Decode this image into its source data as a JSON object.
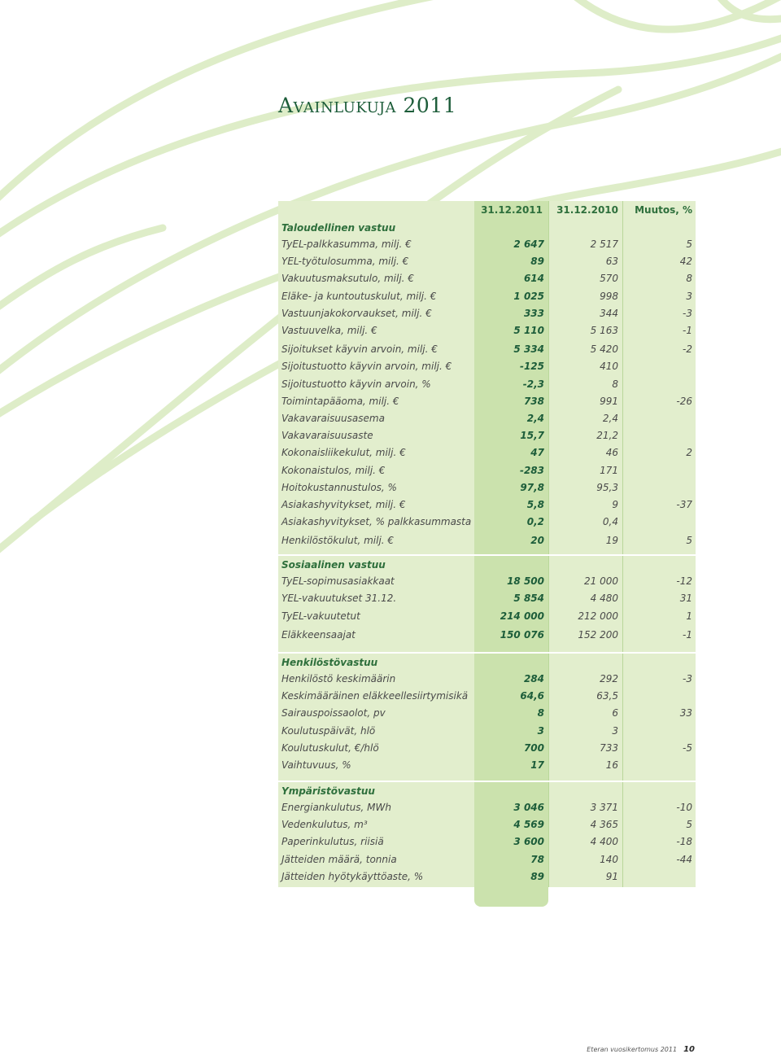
{
  "title": "Avainlukuja 2011",
  "columns": [
    "31.12.2011",
    "31.12.2010",
    "Muutos, %"
  ],
  "sections": [
    {
      "title": "Taloudellinen vastuu",
      "rows": [
        [
          "TyEL-palkkasumma, milj. €",
          "2 647",
          "2 517",
          "5"
        ],
        [
          "YEL-työtulosumma, milj. €",
          "89",
          "63",
          "42"
        ],
        [
          "Vakuutusmaksutulo, milj. €",
          "614",
          "570",
          "8"
        ],
        [
          "Eläke- ja kuntoutuskulut, milj. €",
          "1 025",
          "998",
          "3"
        ],
        [
          "Vastuunjakokorvaukset, milj. €",
          "333",
          "344",
          "-3"
        ],
        [
          "Vastuuvelka, milj. €",
          "5 110",
          "5 163",
          "-1"
        ],
        [
          "Sijoitukset käyvin arvoin, milj. €",
          "5 334",
          "5 420",
          "-2"
        ],
        [
          "Sijoitustuotto käyvin arvoin, milj. €",
          "-125",
          "410",
          ""
        ],
        [
          "Sijoitustuotto käyvin arvoin, %",
          "-2,3",
          "8",
          ""
        ],
        [
          "Toimintapääoma, milj. €",
          "738",
          "991",
          "-26"
        ],
        [
          "Vakavaraisuusasema",
          "2,4",
          "2,4",
          ""
        ],
        [
          "Vakavaraisuusaste",
          "15,7",
          "21,2",
          ""
        ],
        [
          "Kokonaisliikekulut, milj. €",
          "47",
          "46",
          "2"
        ],
        [
          "Kokonaistulos, milj. €",
          "-283",
          "171",
          ""
        ],
        [
          "Hoitokustannustulos, %",
          "97,8",
          "95,3",
          ""
        ],
        [
          "Asiakashyvitykset, milj. €",
          "5,8",
          "9",
          "-37"
        ],
        [
          "Asiakashyvitykset, % palkkasummasta",
          "0,2",
          "0,4",
          ""
        ],
        [
          "Henkilöstökulut, milj. €",
          "20",
          "19",
          "5"
        ]
      ]
    },
    {
      "title": "Sosiaalinen vastuu",
      "rows": [
        [
          "TyEL-sopimusasiakkaat",
          "18 500",
          "21 000",
          "-12"
        ],
        [
          "YEL-vakuutukset 31.12.",
          "5 854",
          "4 480",
          "31"
        ],
        [
          "TyEL-vakuutetut",
          "214 000",
          "212 000",
          "1"
        ],
        [
          "Eläkkeensaajat",
          "150 076",
          "152 200",
          "-1"
        ]
      ]
    },
    {
      "title": "Henkilöstövastuu",
      "rows": [
        [
          "Henkilöstö keskimäärin",
          "284",
          "292",
          "-3"
        ],
        [
          "Keskimääräinen eläkkeellesiirtymisikä",
          "64,6",
          "63,5",
          ""
        ],
        [
          "Sairauspoissaolot, pv",
          "8",
          "6",
          "33"
        ],
        [
          "Koulutuspäivät, hlö",
          "3",
          "3",
          ""
        ],
        [
          "Koulutuskulut, €/hlö",
          "700",
          "733",
          "-5"
        ],
        [
          "Vaihtuvuus, %",
          "17",
          "16",
          ""
        ]
      ]
    },
    {
      "title": "Ympäristövastuu",
      "rows": [
        [
          "Energiankulutus, MWh",
          "3 046",
          "3 371",
          "-10"
        ],
        [
          "Vedenkulutus, m³",
          "4 569",
          "4 365",
          "5"
        ],
        [
          "Paperinkulutus, riisiä",
          "3 600",
          "4 400",
          "-18"
        ],
        [
          "Jätteiden määrä, tonnia",
          "78",
          "140",
          "-44"
        ],
        [
          "Jätteiden hyötykäyttöaste, %",
          "89",
          "91",
          ""
        ]
      ]
    }
  ],
  "footer": {
    "text": "Eteran vuosikertomus 2011",
    "page": "10"
  }
}
